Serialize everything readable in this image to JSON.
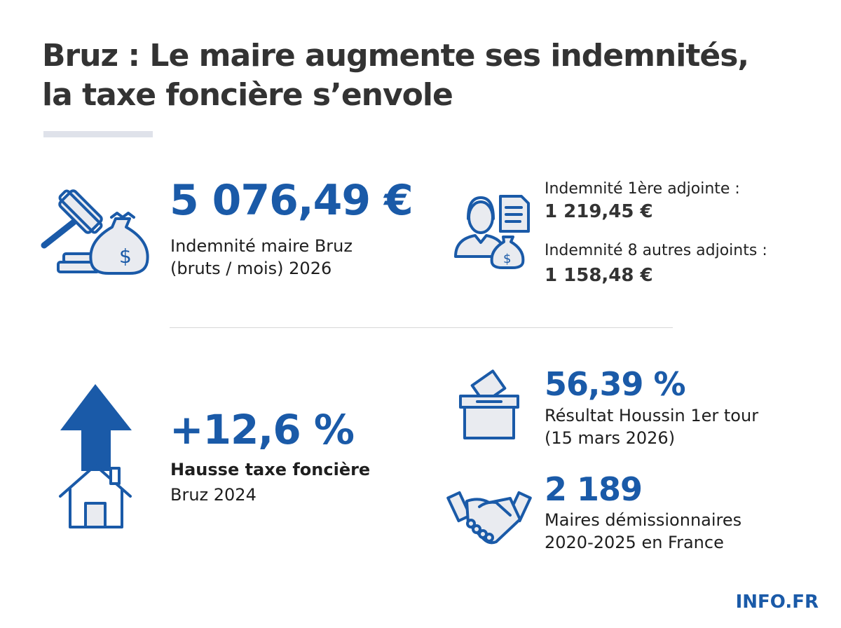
{
  "title": "Bruz : Le maire augmente ses indemnités, la taxe foncière s’envole",
  "title_lines": [
    "Bruz : Le maire augmente ses indemnités,",
    "la taxe foncière s’envole"
  ],
  "colors": {
    "accent": "#1a5aa8",
    "text": "#333333"
  },
  "stats": {
    "maire": {
      "icon": "gavel-money-bag-icon",
      "value": "5 076,49 €",
      "label_lines": [
        "Indemnité maire Bruz",
        "(bruts / mois) 2026"
      ]
    },
    "adjoints": {
      "icon": "woman-document-money-icon",
      "first_label": "Indemnité 1ère adjointe :",
      "first_value": "1 219,45 €",
      "others_label": "Indemnité 8 autres adjoints :",
      "others_value": "1 158,48 €"
    },
    "taxe": {
      "icon": "house-arrow-up-icon",
      "value": "+12,6 %",
      "label_bold": "Hausse taxe foncière",
      "label": "Bruz 2024"
    },
    "election": {
      "icon": "ballot-box-icon",
      "value": "56,39 %",
      "label_lines": [
        "Résultat Houssin 1er tour",
        "(15 mars 2026)"
      ]
    },
    "demissions": {
      "icon": "handshake-icon",
      "value": "2 189",
      "label_lines": [
        "Maires démissionnaires",
        "2020-2025 en France"
      ]
    }
  },
  "brand": "INFO.FR"
}
